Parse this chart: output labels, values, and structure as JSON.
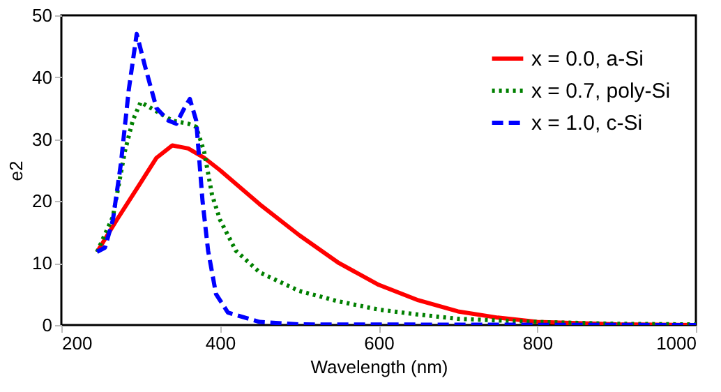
{
  "chart_data": {
    "type": "line",
    "xlabel": "Wavelength (nm)",
    "ylabel": "e2",
    "xlim": [
      200,
      1000
    ],
    "xticks": [
      200,
      400,
      600,
      800,
      1000
    ],
    "ylim": [
      0,
      50
    ],
    "yticks": [
      0,
      10,
      20,
      30,
      40,
      50
    ],
    "grid": false,
    "legend": "top right",
    "marker": "none",
    "series": [
      {
        "name": "x = 0.0, a-Si",
        "color": "#ff0000",
        "line_style": "solid",
        "x": [
          245,
          270,
          300,
          320,
          340,
          360,
          380,
          400,
          450,
          500,
          550,
          600,
          650,
          700,
          750,
          800,
          900,
          1000
        ],
        "values": [
          11.8,
          17,
          23,
          27,
          29,
          28.5,
          27,
          25,
          19.5,
          14.5,
          10,
          6.5,
          4,
          2.2,
          1.2,
          0.5,
          0.1,
          0
        ]
      },
      {
        "name": "x = 0.7, poly-Si",
        "color": "#008000",
        "line_style": "dotted",
        "x": [
          245,
          265,
          280,
          290,
          300,
          320,
          340,
          360,
          370,
          380,
          390,
          400,
          420,
          450,
          500,
          550,
          600,
          650,
          700,
          800,
          900,
          1000
        ],
        "values": [
          11.8,
          17.5,
          28,
          33,
          36,
          34.5,
          33,
          32.5,
          32,
          28,
          21,
          17,
          12,
          8.5,
          5.5,
          3.8,
          2.5,
          1.7,
          1,
          0.5,
          0.2,
          0.1
        ]
      },
      {
        "name": "x = 1.0, c-Si",
        "color": "#0000ff",
        "line_style": "dashed",
        "x": [
          245,
          255,
          265,
          275,
          285,
          295,
          305,
          320,
          335,
          345,
          355,
          362,
          370,
          378,
          385,
          395,
          410,
          450,
          500,
          1000
        ],
        "values": [
          11.8,
          12.5,
          17,
          26,
          38,
          47,
          42,
          35,
          33,
          32.5,
          35,
          36.5,
          33,
          20,
          12,
          5,
          2,
          0.5,
          0.1,
          0
        ]
      }
    ]
  }
}
